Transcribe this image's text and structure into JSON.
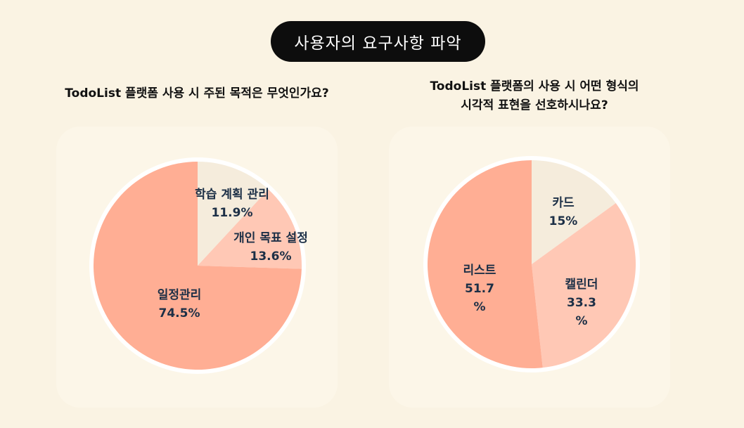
{
  "header": {
    "title": "사용자의 요구사항 파악"
  },
  "chart_data": [
    {
      "type": "pie",
      "title": "TodoList 플랫폼 사용 시 주된 목적은 무엇인가요?",
      "start": "top, clockwise",
      "slices": [
        {
          "label": "학습 계획 관리",
          "value": 11.9,
          "display": "11.9%",
          "color": "#f5ecdc"
        },
        {
          "label": "개인 목표 설정",
          "value": 13.6,
          "display": "13.6%",
          "color": "#ffc8b5"
        },
        {
          "label": "일정관리",
          "value": 74.5,
          "display": "74.5%",
          "color": "#ffae94"
        }
      ]
    },
    {
      "type": "pie",
      "title_lines": [
        "TodoList 플랫폼의 사용 시 어떤 형식의",
        "시각적 표현을 선호하시나요?"
      ],
      "start": "top, clockwise",
      "slices": [
        {
          "label": "카드",
          "value": 15,
          "display_lines": [
            "15%"
          ],
          "color": "#f5ecdc"
        },
        {
          "label": "캘린더",
          "value": 33.3,
          "display_lines": [
            "33.3",
            "%"
          ],
          "color": "#ffc8b5"
        },
        {
          "label": "리스트",
          "value": 51.7,
          "display_lines": [
            "51.7",
            "%"
          ],
          "color": "#ffae94"
        }
      ]
    }
  ]
}
